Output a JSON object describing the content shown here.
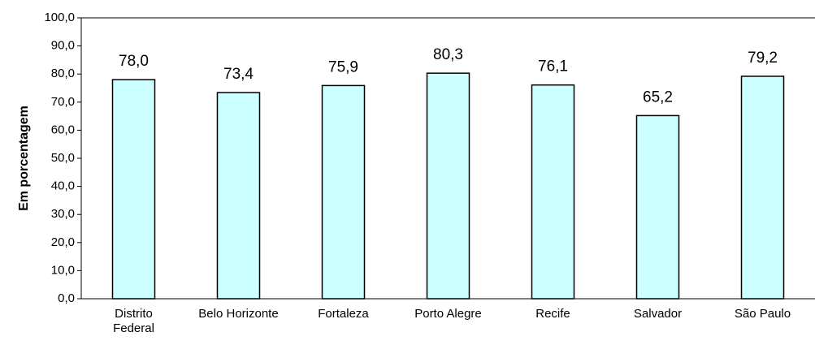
{
  "chart_data": {
    "type": "bar",
    "y_label": "Em porcentagem",
    "categories": [
      "Distrito Federal",
      "Belo Horizonte",
      "Fortaleza",
      "Porto Alegre",
      "Recife",
      "Salvador",
      "São Paulo"
    ],
    "values": [
      78.0,
      73.4,
      75.9,
      80.3,
      76.1,
      65.2,
      79.2
    ],
    "value_labels": [
      "78,0",
      "73,4",
      "75,9",
      "80,3",
      "76,1",
      "65,2",
      "79,2"
    ],
    "color": "#ccffff",
    "ylim": [
      0,
      100
    ],
    "yticks": [
      {
        "value": 0,
        "label": "0,0"
      },
      {
        "value": 10,
        "label": "10,0"
      },
      {
        "value": 20,
        "label": "20,0"
      },
      {
        "value": 30,
        "label": "30,0"
      },
      {
        "value": 40,
        "label": "40,0"
      },
      {
        "value": 50,
        "label": "50,0"
      },
      {
        "value": 60,
        "label": "60,0"
      },
      {
        "value": 70,
        "label": "70,0"
      },
      {
        "value": 80,
        "label": "80,0"
      },
      {
        "value": 90,
        "label": "90,0"
      },
      {
        "value": 100,
        "label": "100,0"
      }
    ],
    "grid": false
  }
}
